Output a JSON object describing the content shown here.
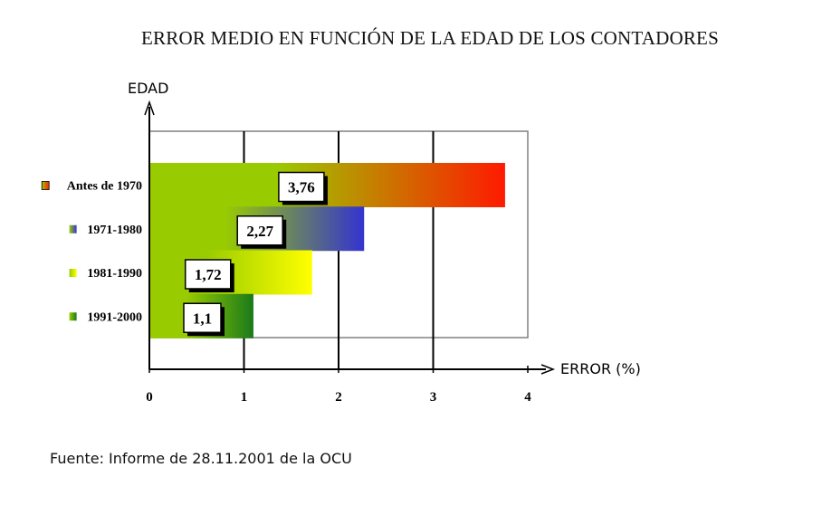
{
  "chart_data": {
    "type": "bar",
    "orientation": "horizontal",
    "title": "ERROR MEDIO EN FUNCIÓN DE LA EDAD DE LOS CONTADORES",
    "xlabel": "ERROR (%)",
    "ylabel": "EDAD",
    "xlim": [
      0,
      4
    ],
    "xticks": [
      "0",
      "1",
      "2",
      "3",
      "4"
    ],
    "grid": true,
    "legend": "left",
    "categories": [
      "Antes de 1970",
      "1971-1980",
      "1981-1990",
      "1991-2000"
    ],
    "values": [
      3.76,
      2.27,
      1.72,
      1.1
    ],
    "value_labels": [
      "3,76",
      "2,27",
      "1,72",
      "1,1"
    ],
    "colors": [
      "#ff1a00",
      "#3333d0",
      "#ffff00",
      "#1a7a1a"
    ],
    "base_color": "#99cc00"
  },
  "source": "Fuente: Informe de 28.11.2001 de la OCU"
}
